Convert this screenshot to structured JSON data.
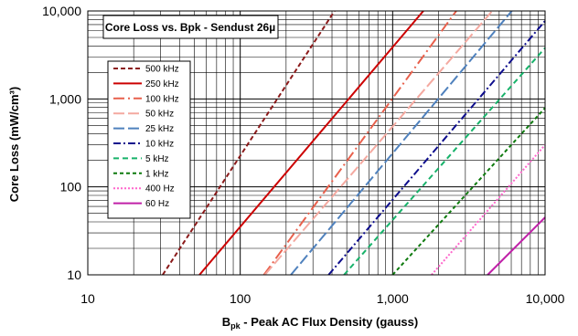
{
  "chart_data": {
    "type": "line",
    "title": "Core Loss vs. Bpk - Sendust  26µ",
    "xlabel_main": "B",
    "xlabel_sub": "pk",
    "xlabel_rest": " - Peak AC Flux Density (gauss)",
    "ylabel": "Core Loss (mW/cm³)",
    "xscale": "log",
    "yscale": "log",
    "xlim": [
      10,
      10000
    ],
    "ylim": [
      10,
      10000
    ],
    "grid": true,
    "legend_position": "left",
    "x_ticks": [
      10,
      100,
      1000,
      10000
    ],
    "x_tick_labels": [
      "10",
      "100",
      "1,000",
      "10,000"
    ],
    "y_ticks": [
      10,
      100,
      1000,
      10000
    ],
    "y_tick_labels": [
      "10",
      "100",
      "1,000",
      "10,000"
    ],
    "series": [
      {
        "name": "500 kHz",
        "color": "#8B1A1A",
        "dash": "5,3",
        "x": [
          31,
          416
        ],
        "y": [
          10,
          10000
        ]
      },
      {
        "name": "250 kHz",
        "color": "#CC0000",
        "dash": "",
        "x": [
          54,
          1590
        ],
        "y": [
          10,
          10000
        ]
      },
      {
        "name": "100 kHz",
        "color": "#E8604C",
        "dash": "12,4,2,4",
        "x": [
          143,
          2615
        ],
        "y": [
          10,
          10000
        ]
      },
      {
        "name": "50 kHz",
        "color": "#F4A9A0",
        "dash": "12,4",
        "x": [
          145,
          4500
        ],
        "y": [
          10,
          10000
        ]
      },
      {
        "name": "25 kHz",
        "color": "#4F81BD",
        "dash": "12,4",
        "x": [
          215,
          6050
        ],
        "y": [
          10,
          10000
        ]
      },
      {
        "name": "10 kHz",
        "color": "#0D0D8C",
        "dash": "8,3,2,3",
        "x": [
          380,
          10000
        ],
        "y": [
          10,
          7700
        ]
      },
      {
        "name": "5 kHz",
        "color": "#17B26A",
        "dash": "6,4",
        "x": [
          480,
          10000
        ],
        "y": [
          10,
          3800
        ]
      },
      {
        "name": "1 kHz",
        "color": "#0E7A0E",
        "dash": "4,3",
        "x": [
          1000,
          10000
        ],
        "y": [
          10,
          790
        ]
      },
      {
        "name": "400 Hz",
        "color": "#FF66CC",
        "dash": "2,2",
        "x": [
          1800,
          10000
        ],
        "y": [
          10,
          300
        ]
      },
      {
        "name": "60 Hz",
        "color": "#C020A8",
        "dash": "",
        "x": [
          4200,
          10000
        ],
        "y": [
          10,
          45
        ]
      }
    ]
  }
}
